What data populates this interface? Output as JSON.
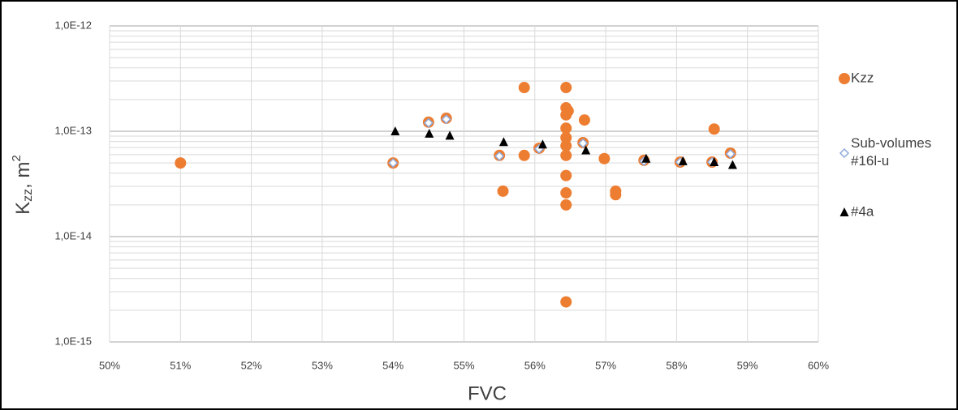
{
  "chart_data": {
    "type": "scatter",
    "x_label": "FVC",
    "y_label": {
      "main": "K",
      "sub": "zz",
      "unit": ", m",
      "sup": "2"
    },
    "log_y": true,
    "grid": true,
    "legend": "right",
    "xlim": [
      50,
      60
    ],
    "xticks": [
      {
        "value": 50,
        "label": "50%"
      },
      {
        "value": 51,
        "label": "51%"
      },
      {
        "value": 52,
        "label": "52%"
      },
      {
        "value": 53,
        "label": "53%"
      },
      {
        "value": 54,
        "label": "54%"
      },
      {
        "value": 55,
        "label": "55%"
      },
      {
        "value": 56,
        "label": "56%"
      },
      {
        "value": 57,
        "label": "57%"
      },
      {
        "value": 58,
        "label": "58%"
      },
      {
        "value": 59,
        "label": "59%"
      },
      {
        "value": 60,
        "label": "60%"
      }
    ],
    "ylim": [
      1e-15,
      1e-12
    ],
    "yticks": [
      {
        "value": 1e-15,
        "label": "1,0E-15"
      },
      {
        "value": 1e-14,
        "label": "1,0E-14"
      },
      {
        "value": 1e-13,
        "label": "1,0E-13"
      },
      {
        "value": 1e-12,
        "label": "1,0E-12"
      }
    ],
    "series": [
      {
        "name": "Kzz",
        "marker": "circle",
        "color": "#ed7d31",
        "x": [
          51.0,
          54.0,
          54.5,
          54.75,
          55.5,
          55.55,
          55.85,
          55.85,
          56.06,
          56.44,
          56.44,
          56.44,
          56.47,
          56.44,
          56.44,
          56.44,
          56.44,
          56.44,
          56.44,
          56.44,
          56.44,
          56.7,
          56.68,
          56.98,
          57.14,
          57.14,
          57.54,
          58.05,
          58.53,
          58.5,
          58.76
        ],
        "values": [
          5e-14,
          5e-14,
          1.22e-13,
          1.33e-13,
          5.9e-14,
          2.7e-14,
          2.6e-13,
          5.9e-14,
          6.9e-14,
          2.6e-13,
          1.67e-13,
          1.43e-13,
          1.56e-13,
          1.07e-13,
          8.7e-14,
          7.3e-14,
          5.9e-14,
          3.8e-14,
          2.6e-14,
          2e-14,
          2.4e-15,
          1.28e-13,
          7.8e-14,
          5.5e-14,
          2.7e-14,
          2.5e-14,
          5.3e-14,
          5.1e-14,
          1.05e-13,
          5.1e-14,
          6.2e-14
        ]
      },
      {
        "name": "Sub-volumes #16l-u",
        "marker": "diamond",
        "color": "#8faadc",
        "x": [
          54.0,
          54.5,
          54.75,
          55.5,
          56.06,
          56.68,
          57.54,
          58.05,
          58.5,
          58.76
        ],
        "values": [
          5e-14,
          1.2e-13,
          1.3e-13,
          5.8e-14,
          6.8e-14,
          7.7e-14,
          5.2e-14,
          5.1e-14,
          5.1e-14,
          6.1e-14
        ]
      },
      {
        "name": "#4a",
        "marker": "triangle",
        "color": "#000000",
        "x": [
          54.03,
          54.51,
          54.8,
          55.56,
          56.11,
          56.72,
          57.57,
          58.09,
          58.53,
          58.79
        ],
        "values": [
          1e-13,
          9.5e-14,
          9.1e-14,
          7.9e-14,
          7.5e-14,
          6.6e-14,
          5.5e-14,
          5.2e-14,
          5.1e-14,
          4.8e-14
        ]
      }
    ]
  }
}
